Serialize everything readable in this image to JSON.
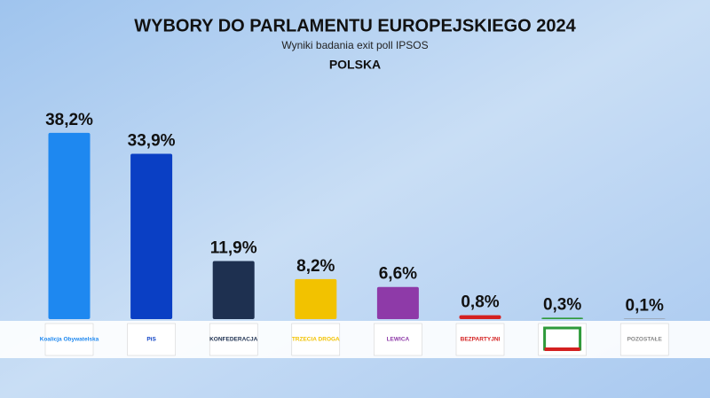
{
  "chart_data": {
    "type": "bar",
    "title": "WYBORY DO PARLAMENTU EUROPEJSKIEGO 2024",
    "subtitle": "Wyniki badania exit poll IPSOS",
    "region": "POLSKA",
    "categories": [
      "Koalicja Obywatelska",
      "PiS",
      "KONFEDERACJA",
      "TRZECIA DROGA",
      "LEWICA",
      "BEZPARTYJNI",
      null,
      "POZOSTAŁE"
    ],
    "values": [
      38.2,
      33.9,
      11.9,
      8.2,
      6.6,
      0.8,
      0.3,
      0.1
    ],
    "value_labels": [
      "38,2%",
      "33,9%",
      "11,9%",
      "8,2%",
      "6,6%",
      "0,8%",
      "0,3%",
      "0,1%"
    ],
    "colors": [
      "#1e88f0",
      "#0a3fc4",
      "#1e3050",
      "#f2c200",
      "#8e3aa8",
      "#d42020",
      "#2e9a3a",
      "#888888"
    ]
  }
}
